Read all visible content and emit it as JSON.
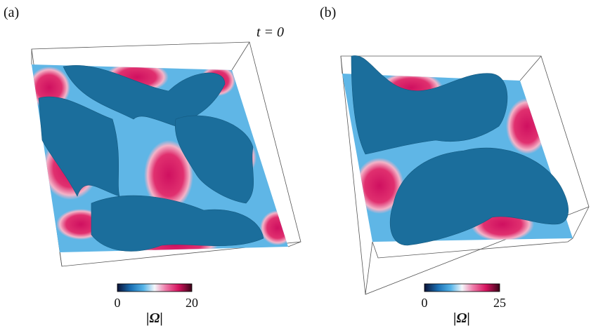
{
  "panels": [
    {
      "label": "(a)",
      "time": "t = 0",
      "colorbar": {
        "ticks": [
          0,
          20
        ],
        "label": "|Ω|"
      }
    },
    {
      "label": "(b)",
      "colorbar": {
        "ticks": [
          0,
          25
        ],
        "label": "|Ω|"
      }
    }
  ]
}
